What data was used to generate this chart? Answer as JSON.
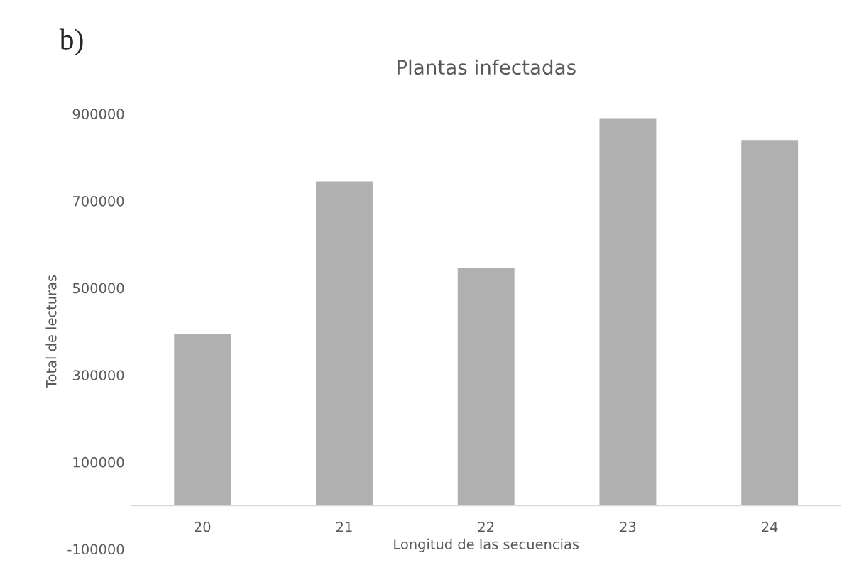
{
  "chart_data": {
    "type": "bar",
    "title": "Plantas infectadas",
    "xlabel": "Longitud de las secuencias",
    "ylabel": "Total de lecturas",
    "annotations": [
      "b)"
    ],
    "categories": [
      "20",
      "21",
      "22",
      "23",
      "24"
    ],
    "values": [
      395000,
      745000,
      545000,
      890000,
      840000
    ],
    "color": "#b0b0b0",
    "ylim": [
      -100000,
      900000
    ],
    "yticks": [
      -100000,
      100000,
      300000,
      500000,
      700000,
      900000
    ],
    "grid": false
  }
}
